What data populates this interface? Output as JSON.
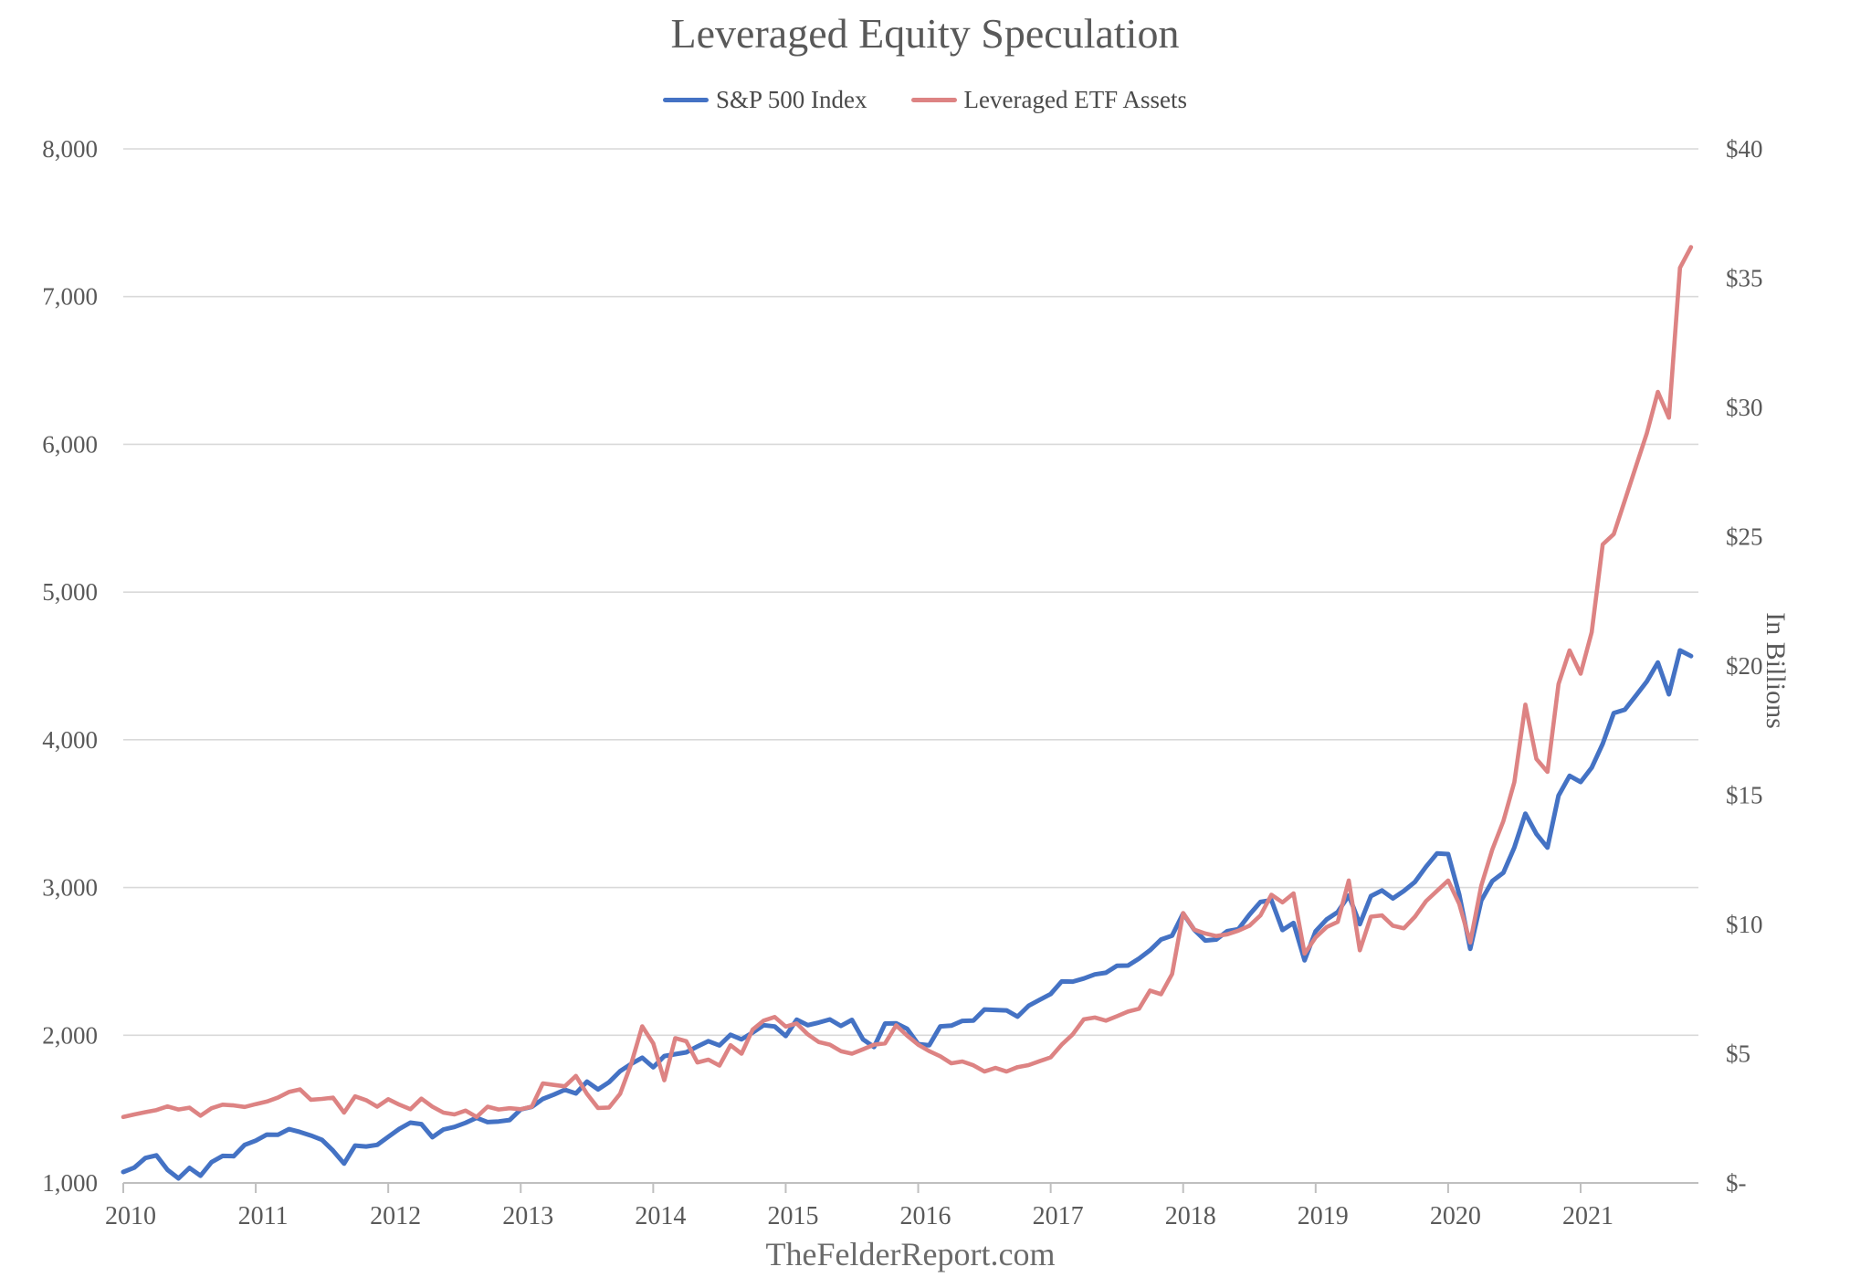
{
  "title": "Leveraged Equity Speculation",
  "footer": "TheFelderReport.com",
  "colors": {
    "sp500": "#4472C4",
    "etf": "#DD8383",
    "gridline": "#D9D9D9",
    "axis_line": "#BFBFBF",
    "axis_text": "#595959"
  },
  "legend": {
    "items": [
      {
        "label": "S&P 500 Index",
        "color": "#4472C4"
      },
      {
        "label": "Leveraged ETF Assets",
        "color": "#DD8383"
      }
    ]
  },
  "chart_data": {
    "type": "line",
    "title": "Leveraged Equity Speculation",
    "x_interval": "monthly",
    "x_start": "2010-01",
    "x_end": "2021-11",
    "x_tick_labels": [
      "2010",
      "2011",
      "2012",
      "2013",
      "2014",
      "2015",
      "2016",
      "2017",
      "2018",
      "2019",
      "2020",
      "2021"
    ],
    "left_axis": {
      "range": [
        1000,
        8000
      ],
      "tick_labels": [
        "1,000",
        "2,000",
        "3,000",
        "4,000",
        "5,000",
        "6,000",
        "7,000",
        "8,000"
      ]
    },
    "right_axis": {
      "title": "In Billions",
      "range": [
        0,
        40
      ],
      "tick_labels": [
        "$-",
        "$5",
        "$10",
        "$15",
        "$20",
        "$25",
        "$30",
        "$35",
        "$40"
      ]
    },
    "grid": "horizontal-only",
    "legend_position": "top-center",
    "series": [
      {
        "name": "S&P 500 Index",
        "axis": "left",
        "color": "#4472C4",
        "values": [
          1074,
          1104,
          1169,
          1187,
          1089,
          1031,
          1102,
          1049,
          1141,
          1183,
          1181,
          1258,
          1286,
          1327,
          1326,
          1364,
          1345,
          1321,
          1292,
          1219,
          1131,
          1253,
          1247,
          1258,
          1312,
          1366,
          1408,
          1398,
          1310,
          1362,
          1379,
          1407,
          1441,
          1412,
          1416,
          1426,
          1498,
          1515,
          1569,
          1598,
          1631,
          1606,
          1686,
          1633,
          1682,
          1757,
          1806,
          1848,
          1783,
          1859,
          1872,
          1884,
          1924,
          1960,
          1931,
          2003,
          1972,
          2018,
          2068,
          2059,
          1995,
          2105,
          2068,
          2086,
          2107,
          2063,
          2104,
          1972,
          1920,
          2079,
          2080,
          2044,
          1940,
          1932,
          2060,
          2065,
          2097,
          2099,
          2174,
          2171,
          2168,
          2126,
          2199,
          2239,
          2279,
          2364,
          2363,
          2384,
          2412,
          2423,
          2470,
          2472,
          2519,
          2575,
          2648,
          2674,
          2824,
          2714,
          2641,
          2648,
          2705,
          2718,
          2816,
          2902,
          2914,
          2712,
          2760,
          2507,
          2704,
          2784,
          2834,
          2946,
          2752,
          2942,
          2980,
          2926,
          2977,
          3038,
          3141,
          3231,
          3226,
          2954,
          2585,
          2912,
          3044,
          3100,
          3271,
          3500,
          3363,
          3270,
          3622,
          3756,
          3714,
          3811,
          3973,
          4181,
          4204,
          4298,
          4395,
          4523,
          4308,
          4605,
          4567
        ]
      },
      {
        "name": "Leveraged ETF Assets",
        "axis": "right",
        "color": "#DD8383",
        "values": [
          2.55,
          2.65,
          2.74,
          2.82,
          2.96,
          2.84,
          2.91,
          2.6,
          2.89,
          3.03,
          3.0,
          2.94,
          3.05,
          3.15,
          3.3,
          3.52,
          3.62,
          3.22,
          3.25,
          3.3,
          2.72,
          3.35,
          3.2,
          2.95,
          3.24,
          3.03,
          2.85,
          3.26,
          2.95,
          2.72,
          2.65,
          2.8,
          2.55,
          2.95,
          2.84,
          2.89,
          2.85,
          2.95,
          3.85,
          3.79,
          3.74,
          4.14,
          3.45,
          2.9,
          2.92,
          3.45,
          4.6,
          6.06,
          5.4,
          3.97,
          5.6,
          5.48,
          4.66,
          4.77,
          4.54,
          5.33,
          5.0,
          5.93,
          6.28,
          6.42,
          6.05,
          6.17,
          5.75,
          5.45,
          5.35,
          5.1,
          5.0,
          5.17,
          5.35,
          5.4,
          6.1,
          5.7,
          5.35,
          5.1,
          4.9,
          4.63,
          4.7,
          4.55,
          4.31,
          4.45,
          4.31,
          4.48,
          4.56,
          4.71,
          4.86,
          5.35,
          5.75,
          6.33,
          6.4,
          6.28,
          6.45,
          6.63,
          6.74,
          7.44,
          7.3,
          8.08,
          10.44,
          9.8,
          9.65,
          9.55,
          9.62,
          9.76,
          9.95,
          10.35,
          11.15,
          10.85,
          11.2,
          8.87,
          9.5,
          9.9,
          10.1,
          11.7,
          9.0,
          10.3,
          10.35,
          9.95,
          9.85,
          10.3,
          10.9,
          11.3,
          11.7,
          10.8,
          9.3,
          11.5,
          12.9,
          14.0,
          15.5,
          18.5,
          16.4,
          15.9,
          19.3,
          20.6,
          19.7,
          21.3,
          24.7,
          25.1,
          26.4,
          27.7,
          29.0,
          30.6,
          29.6,
          35.4,
          36.2
        ]
      }
    ]
  }
}
